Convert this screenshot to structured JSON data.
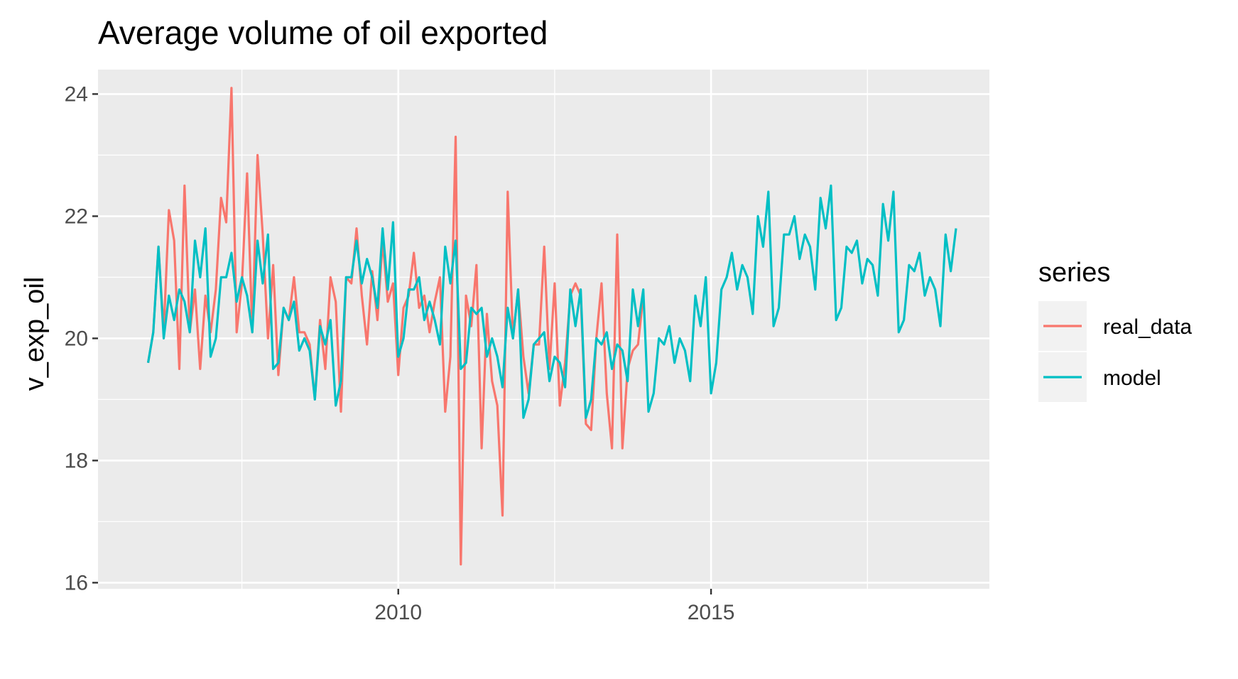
{
  "chart_data": {
    "type": "line",
    "title": "Average volume of oil exported",
    "xlabel": "",
    "ylabel": "v_exp_oil",
    "xlim": [
      2005.2,
      2019.45
    ],
    "ylim": [
      15.9,
      24.4
    ],
    "x_ticks": [
      2010,
      2015
    ],
    "x_tick_labels": [
      "2010",
      "2015"
    ],
    "y_ticks": [
      16,
      18,
      20,
      22,
      24
    ],
    "y_tick_labels": [
      "16",
      "18",
      "20",
      "22",
      "24"
    ],
    "grid": true,
    "panel_background": "#ebebeb",
    "legend": {
      "title": "series",
      "position": "right"
    },
    "x_start": 2006.0,
    "x_step": 0.08333,
    "series": [
      {
        "name": "real_data",
        "color": "#f8766d",
        "values": [
          19.6,
          20.1,
          21.5,
          20.1,
          22.1,
          21.6,
          19.5,
          22.5,
          20.1,
          20.8,
          19.5,
          20.7,
          20.1,
          20.8,
          22.3,
          21.9,
          24.1,
          20.1,
          20.9,
          22.7,
          20.1,
          23.0,
          21.7,
          20.0,
          21.2,
          19.4,
          20.5,
          20.3,
          21.0,
          20.1,
          20.1,
          19.9,
          19.0,
          20.3,
          19.5,
          21.0,
          20.6,
          18.8,
          21.0,
          20.9,
          21.8,
          20.7,
          19.9,
          21.1,
          20.3,
          21.6,
          20.6,
          20.9,
          19.4,
          20.5,
          20.7,
          21.4,
          20.5,
          20.7,
          20.1,
          20.6,
          21.0,
          18.8,
          19.7,
          23.3,
          16.3,
          20.7,
          20.2,
          21.2,
          18.2,
          20.4,
          19.3,
          18.9,
          17.1,
          22.4,
          20.0,
          20.8,
          19.7,
          19.1,
          19.9,
          19.9,
          21.5,
          19.5,
          20.9,
          18.9,
          19.6,
          20.7,
          20.9,
          20.7,
          18.6,
          18.5,
          20.0,
          20.9,
          19.1,
          18.2,
          21.7,
          18.2,
          19.5,
          19.8,
          19.9,
          20.7
        ]
      },
      {
        "name": "model",
        "color": "#00bfc4",
        "values": [
          19.6,
          20.1,
          21.5,
          20.0,
          20.7,
          20.3,
          20.8,
          20.6,
          20.1,
          21.6,
          21.0,
          21.8,
          19.7,
          20.0,
          21.0,
          21.0,
          21.4,
          20.6,
          21.0,
          20.7,
          20.1,
          21.6,
          20.9,
          21.7,
          19.5,
          19.6,
          20.5,
          20.3,
          20.6,
          19.8,
          20.0,
          19.8,
          19.0,
          20.2,
          19.9,
          20.3,
          18.9,
          19.3,
          21.0,
          21.0,
          21.6,
          20.9,
          21.3,
          21.0,
          20.5,
          21.8,
          20.8,
          21.9,
          19.7,
          20.0,
          20.8,
          20.8,
          21.0,
          20.3,
          20.6,
          20.3,
          19.9,
          21.5,
          20.9,
          21.6,
          19.5,
          19.6,
          20.5,
          20.4,
          20.5,
          19.7,
          20.0,
          19.7,
          19.2,
          20.5,
          20.0,
          20.8,
          18.7,
          19.0,
          19.9,
          20.0,
          20.1,
          19.3,
          19.7,
          19.6,
          19.2,
          20.8,
          20.2,
          20.8,
          18.7,
          19.0,
          20.0,
          19.9,
          20.1,
          19.5,
          19.9,
          19.8,
          19.3,
          20.8,
          20.2,
          20.8,
          18.8,
          19.1,
          20.0,
          19.9,
          20.2,
          19.6,
          20.0,
          19.8,
          19.3,
          20.7,
          20.2,
          21.0,
          19.1,
          19.6,
          20.8,
          21.0,
          21.4,
          20.8,
          21.2,
          21.0,
          20.4,
          22.0,
          21.5,
          22.4,
          20.2,
          20.5,
          21.7,
          21.7,
          22.0,
          21.3,
          21.7,
          21.5,
          20.8,
          22.3,
          21.8,
          22.5,
          20.3,
          20.5,
          21.5,
          21.4,
          21.6,
          20.9,
          21.3,
          21.2,
          20.7,
          22.2,
          21.6,
          22.4,
          20.1,
          20.3,
          21.2,
          21.1,
          21.4,
          20.7,
          21.0,
          20.8,
          20.2,
          21.7,
          21.1,
          21.8
        ]
      }
    ]
  }
}
